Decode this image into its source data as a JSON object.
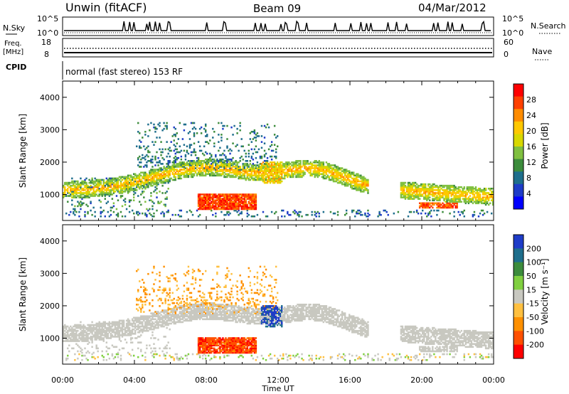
{
  "header": {
    "station": "Unwin (fitACF)",
    "beam": "Beam 09",
    "date": "04/Mar/2012"
  },
  "panels": {
    "nsky_label": "N.Sky",
    "nsearch_label": "N.Search",
    "left_ticks": [
      "10^5",
      "10^0"
    ],
    "right_ticks": [
      "10^5",
      "10^0"
    ],
    "freq_label_1": "Freq.",
    "freq_label_2": "[MHz]",
    "freq_ticks": [
      "18",
      "8"
    ],
    "nave_label": "Nave",
    "nave_ticks": [
      "60",
      "0"
    ],
    "cpid_label": "CPID",
    "cpid_text": "normal (fast stereo) 153 RF"
  },
  "colorbars": {
    "power": {
      "label": "Power [dB]",
      "ticks": [
        "28",
        "24",
        "20",
        "16",
        "12",
        "8",
        "4"
      ],
      "colors": [
        "#ff0000",
        "#ff4000",
        "#ff8c00",
        "#ffc800",
        "#d8d800",
        "#80c040",
        "#3c8c3c",
        "#1e6e8c",
        "#1e3cc8",
        "#0000ff"
      ]
    },
    "velocity": {
      "label": "Velocity [m s⁻¹]",
      "ticks": [
        "200",
        "100",
        "50",
        "15",
        "-15",
        "-50",
        "-100",
        "-200"
      ],
      "colors": [
        "#1e3cc8",
        "#1e6e8c",
        "#3c8c3c",
        "#80d040",
        "#c8c8c0",
        "#ffc040",
        "#ff9000",
        "#ff5000",
        "#ff0000"
      ]
    }
  },
  "chart_data": [
    {
      "type": "heatmap",
      "title": "",
      "xlabel": "Time UT",
      "ylabel": "Slant Range [km]",
      "x_ticks": [
        "00:00",
        "04:00",
        "08:00",
        "12:00",
        "16:00",
        "20:00",
        "00:00"
      ],
      "y_ticks": [
        "1000",
        "2000",
        "3000",
        "4000"
      ],
      "ylim": [
        200,
        4500
      ],
      "series": [
        {
          "x": [
            1.0,
            10.5
          ],
          "y": [
            1000,
            2200
          ],
          "value": 14
        },
        {
          "x": [
            7.5,
            10.8
          ],
          "y": [
            550,
            1000
          ],
          "value": 28
        },
        {
          "x": [
            4.0,
            12.0
          ],
          "y": [
            1500,
            3200
          ],
          "value": 6
        },
        {
          "x": [
            14.0,
            16.0
          ],
          "y": [
            550,
            700
          ],
          "value": 8
        },
        {
          "x": [
            19.0,
            24.0
          ],
          "y": [
            500,
            1500
          ],
          "value": 12
        }
      ]
    },
    {
      "type": "heatmap",
      "title": "",
      "xlabel": "Time UT",
      "ylabel": "Slant Range [km]",
      "x_ticks": [
        "00:00",
        "04:00",
        "08:00",
        "12:00",
        "16:00",
        "20:00",
        "00:00"
      ],
      "y_ticks": [
        "1000",
        "2000",
        "3000",
        "4000"
      ],
      "ylim": [
        200,
        4500
      ],
      "series": [
        {
          "x": [
            7.5,
            10.8
          ],
          "y": [
            550,
            1000
          ],
          "value": -80
        },
        {
          "x": [
            11.0,
            12.0
          ],
          "y": [
            1300,
            2000
          ],
          "value": 150
        },
        {
          "x": [
            4.0,
            12.0
          ],
          "y": [
            2000,
            3200
          ],
          "value": -30
        },
        {
          "x": [
            0,
            24
          ],
          "y": [
            500,
            1500
          ],
          "value": 0
        }
      ]
    }
  ]
}
